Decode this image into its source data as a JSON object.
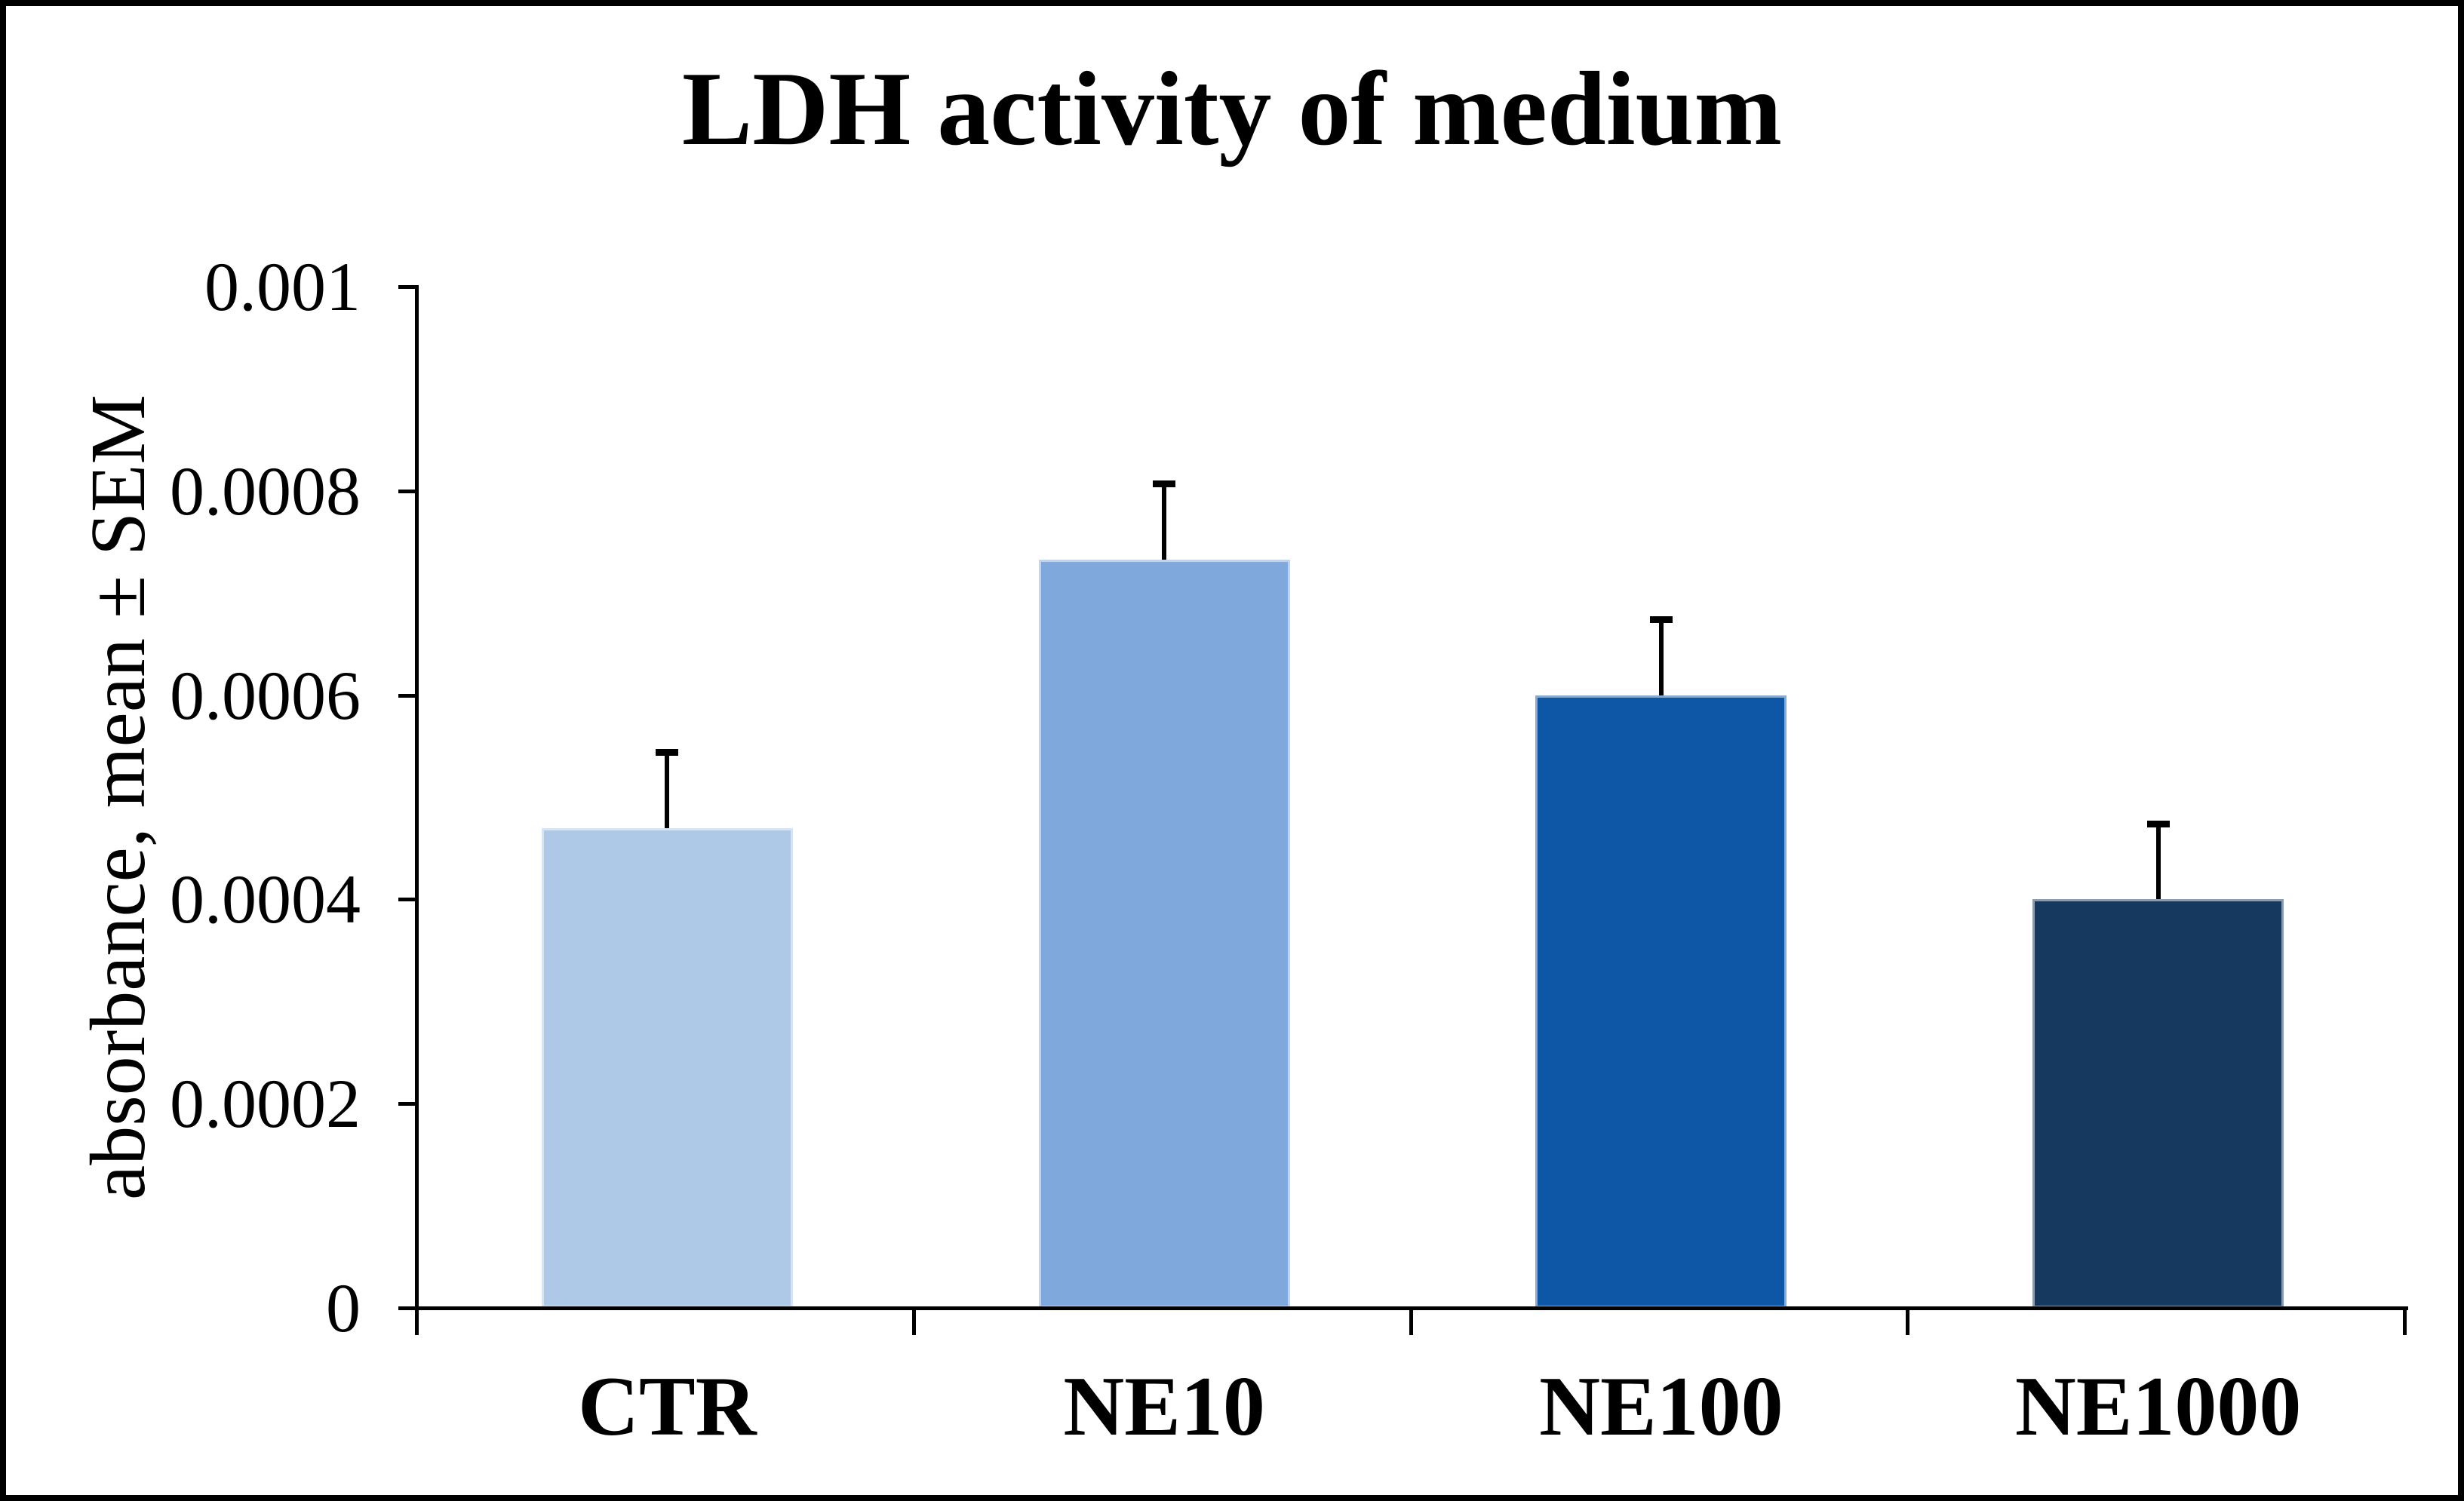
{
  "chart_data": {
    "type": "bar",
    "title": "LDH activity of medium",
    "ylabel": "absorbance, mean ± SEM",
    "categories": [
      "CTR",
      "NE10",
      "NE100",
      "NE1000"
    ],
    "values": [
      0.00047,
      0.000733,
      0.0006,
      0.0004
    ],
    "sem_upper": [
      7.4e-05,
      7.4e-05,
      7.4e-05,
      7.4e-05
    ],
    "bar_colors": [
      "#AEC9E8",
      "#7FA9DC",
      "#0E57A6",
      "#163A5F"
    ],
    "yticks": [
      0,
      0.0002,
      0.0004,
      0.0006,
      0.0008,
      0.001
    ],
    "ytick_labels": [
      "0",
      "0.0002",
      "0.0004",
      "0.0006",
      "0.0008",
      "0.001"
    ],
    "ylim": [
      0,
      0.001
    ],
    "grid": false,
    "legend": false,
    "error_bars": "SEM upper whiskers with caps",
    "axis_color": "#000000",
    "text_color": "#000000",
    "background_color": "#FFFFFF"
  }
}
